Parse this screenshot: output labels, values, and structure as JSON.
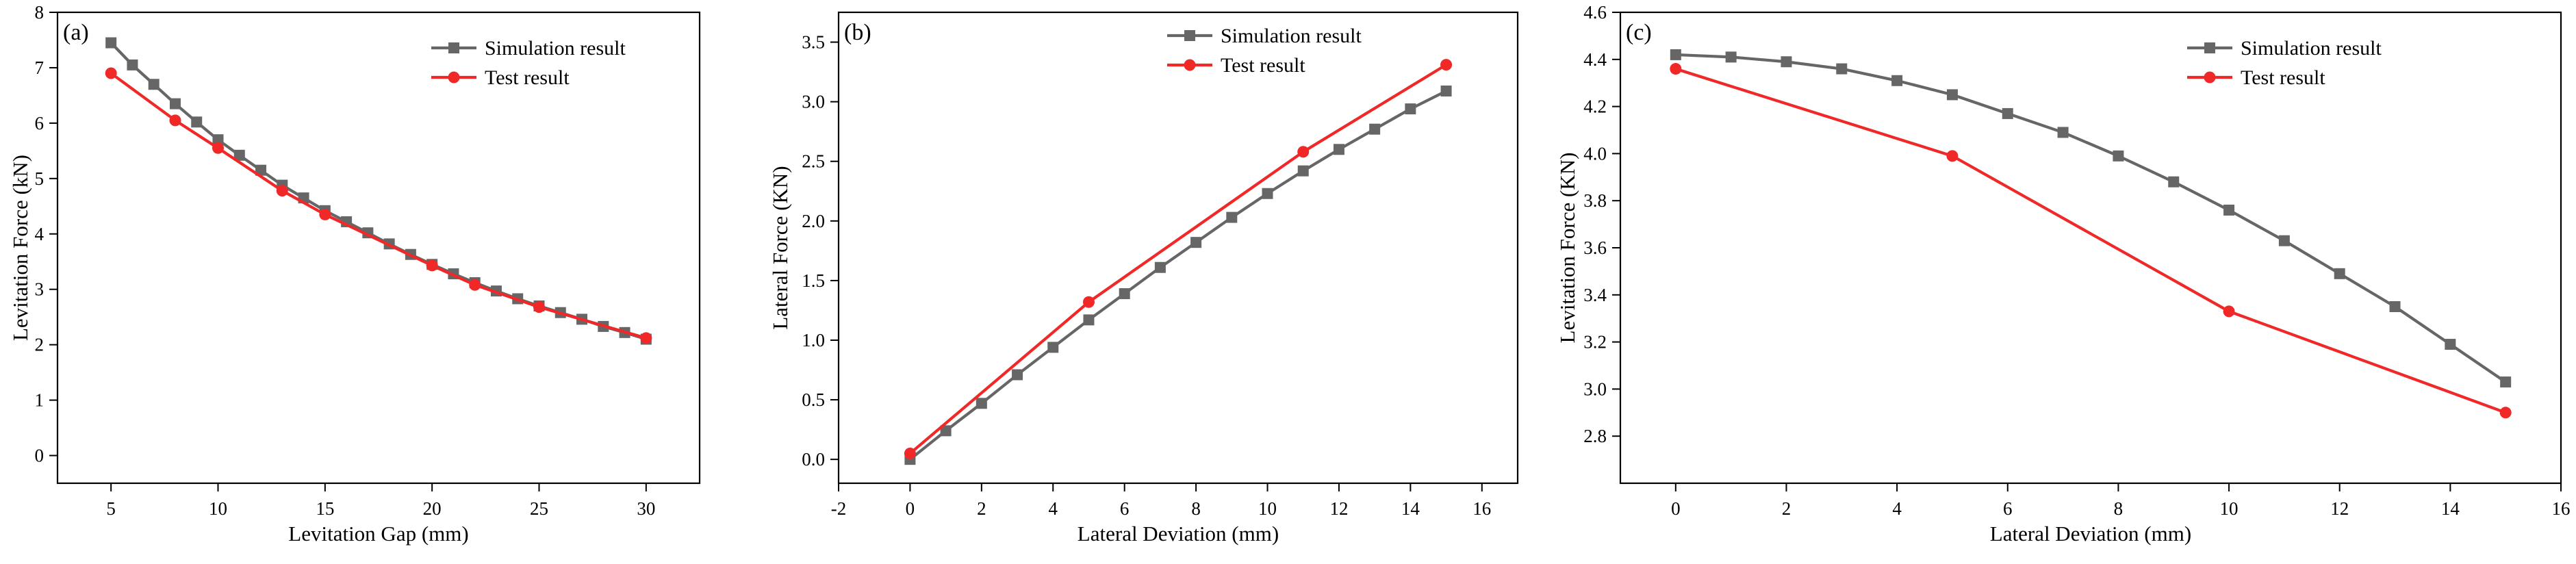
{
  "colors": {
    "simulation": "#666666",
    "test": "#f02828",
    "axis": "#000000"
  },
  "chart_data": [
    {
      "panel_label": "(a)",
      "type": "line",
      "xlabel": "Levitation Gap (mm)",
      "ylabel": "Levitation Force (kN)",
      "xlim": [
        2.5,
        32.5
      ],
      "ylim": [
        -0.5,
        8
      ],
      "xticks": [
        5,
        10,
        15,
        20,
        25,
        30
      ],
      "yticks": [
        0,
        1,
        2,
        3,
        4,
        5,
        6,
        7,
        8
      ],
      "ytick_labels": [
        "0",
        "1",
        "2",
        "3",
        "4",
        "5",
        "6",
        "7",
        "8"
      ],
      "series": [
        {
          "name": "Simulation result",
          "marker": "square",
          "color_key": "simulation",
          "x": [
            5,
            6,
            7,
            8,
            9,
            10,
            11,
            12,
            13,
            14,
            15,
            16,
            17,
            18,
            19,
            20,
            21,
            22,
            23,
            24,
            25,
            26,
            27,
            28,
            29,
            30
          ],
          "y": [
            7.45,
            7.05,
            6.7,
            6.35,
            6.02,
            5.7,
            5.42,
            5.15,
            4.88,
            4.65,
            4.42,
            4.22,
            4.02,
            3.82,
            3.63,
            3.45,
            3.28,
            3.12,
            2.97,
            2.83,
            2.7,
            2.58,
            2.46,
            2.33,
            2.22,
            2.1
          ]
        },
        {
          "name": "Test result",
          "marker": "circle",
          "color_key": "test",
          "x": [
            5,
            8,
            10,
            13,
            15,
            20,
            22,
            25,
            30
          ],
          "y": [
            6.9,
            6.05,
            5.55,
            4.78,
            4.35,
            3.43,
            3.08,
            2.68,
            2.12
          ]
        }
      ]
    },
    {
      "panel_label": "(b)",
      "type": "line",
      "xlabel": "Lateral Deviation (mm)",
      "ylabel": "Lateral Force (KN)",
      "xlim": [
        -2,
        17
      ],
      "ylim": [
        -0.2,
        3.75
      ],
      "xticks": [
        -2,
        0,
        2,
        4,
        6,
        8,
        10,
        12,
        14,
        16
      ],
      "yticks": [
        0,
        0.5,
        1,
        1.5,
        2,
        2.5,
        3,
        3.5
      ],
      "ytick_labels": [
        "0.0",
        "0.5",
        "1.0",
        "1.5",
        "2.0",
        "2.5",
        "3.0",
        "3.5"
      ],
      "series": [
        {
          "name": "Simulation result",
          "marker": "square",
          "color_key": "simulation",
          "x": [
            0,
            1,
            2,
            3,
            4,
            5,
            6,
            7,
            8,
            9,
            10,
            11,
            12,
            13,
            14,
            15
          ],
          "y": [
            0.0,
            0.24,
            0.47,
            0.71,
            0.94,
            1.17,
            1.39,
            1.61,
            1.82,
            2.03,
            2.23,
            2.42,
            2.6,
            2.77,
            2.94,
            3.09
          ]
        },
        {
          "name": "Test result",
          "marker": "circle",
          "color_key": "test",
          "x": [
            0,
            5,
            11,
            15
          ],
          "y": [
            0.05,
            1.32,
            2.58,
            3.31
          ]
        }
      ]
    },
    {
      "panel_label": "(c)",
      "type": "line",
      "xlabel": "Lateral Deviation (mm)",
      "ylabel": "Levitation Force (KN)",
      "xlim": [
        -1,
        16
      ],
      "ylim": [
        2.6,
        4.6
      ],
      "xticks": [
        0,
        2,
        4,
        6,
        8,
        10,
        12,
        14,
        16
      ],
      "yticks": [
        2.8,
        3.0,
        3.2,
        3.4,
        3.6,
        3.8,
        4.0,
        4.2,
        4.4,
        4.6
      ],
      "ytick_labels": [
        "2.8",
        "3.0",
        "3.2",
        "3.4",
        "3.6",
        "3.8",
        "4.0",
        "4.2",
        "4.4",
        "4.6"
      ],
      "series": [
        {
          "name": "Simulation result",
          "marker": "square",
          "color_key": "simulation",
          "x": [
            0,
            1,
            2,
            3,
            4,
            5,
            6,
            7,
            8,
            9,
            10,
            11,
            12,
            13,
            14,
            15
          ],
          "y": [
            4.42,
            4.41,
            4.39,
            4.36,
            4.31,
            4.25,
            4.17,
            4.09,
            3.99,
            3.88,
            3.76,
            3.63,
            3.49,
            3.35,
            3.19,
            3.03
          ]
        },
        {
          "name": "Test result",
          "marker": "circle",
          "color_key": "test",
          "x": [
            0,
            5,
            10,
            15
          ],
          "y": [
            4.36,
            3.99,
            3.33,
            2.9
          ]
        }
      ]
    }
  ]
}
